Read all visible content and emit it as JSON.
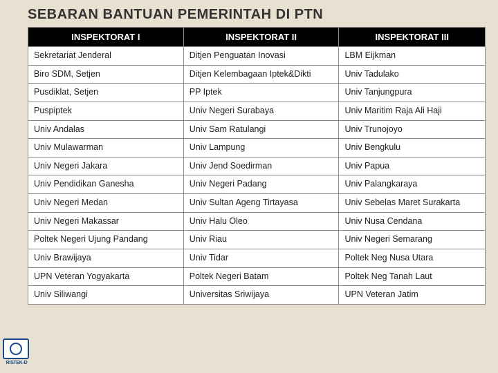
{
  "title": "SEBARAN BANTUAN PEMERINTAH DI PTN",
  "table": {
    "columns": [
      "INSPEKTORAT I",
      "INSPEKTORAT II",
      "INSPEKTORAT III"
    ],
    "column_widths": [
      "34%",
      "34%",
      "32%"
    ],
    "header_bg": "#000000",
    "header_fg": "#ffffff",
    "cell_bg": "#ffffff",
    "border_color": "#888888",
    "font_size_header": 13,
    "font_size_cell": 12.5,
    "rows": [
      [
        "Sekretariat Jenderal",
        "Ditjen Penguatan Inovasi",
        "LBM Eijkman"
      ],
      [
        "Biro SDM, Setjen",
        "Ditjen Kelembagaan Iptek&Dikti",
        "Univ Tadulako"
      ],
      [
        "Pusdiklat, Setjen",
        "PP Iptek",
        "Univ Tanjungpura"
      ],
      [
        "Puspiptek",
        "Univ Negeri Surabaya",
        "Univ Maritim Raja Ali Haji"
      ],
      [
        "Univ Andalas",
        "Univ Sam Ratulangi",
        "Univ Trunojoyo"
      ],
      [
        "Univ Mulawarman",
        "Univ Lampung",
        "Univ Bengkulu"
      ],
      [
        "Univ Negeri Jakara",
        "Univ Jend Soedirman",
        "Univ Papua"
      ],
      [
        "Univ Pendidikan Ganesha",
        "Univ Negeri Padang",
        "Univ Palangkaraya"
      ],
      [
        "Univ Negeri Medan",
        "Univ Sultan Ageng Tirtayasa",
        "Univ Sebelas Maret Surakarta"
      ],
      [
        "Univ Negeri Makassar",
        "Univ Halu Oleo",
        "Univ Nusa Cendana"
      ],
      [
        "Poltek Negeri Ujung Pandang",
        "Univ Riau",
        "Univ Negeri Semarang"
      ],
      [
        "Univ Brawijaya",
        "Univ Tidar",
        "Poltek Neg Nusa Utara"
      ],
      [
        "UPN Veteran Yogyakarta",
        "Poltek Negeri Batam",
        "Poltek Neg Tanah Laut"
      ],
      [
        "Univ Siliwangi",
        "Universitas Sriwijaya",
        "UPN Veteran Jatim"
      ]
    ]
  },
  "background_color": "#e8e0d0",
  "logo_label": "RISTEK-D"
}
